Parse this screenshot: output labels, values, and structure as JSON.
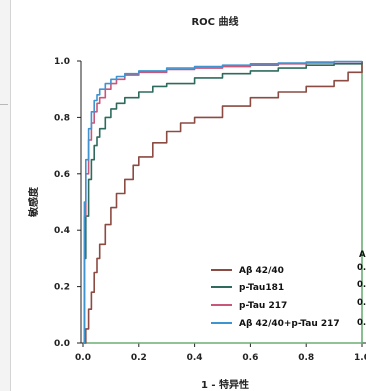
{
  "chart_data": {
    "type": "line",
    "title": "ROC 曲线",
    "xlabel": "1 - 特异性",
    "ylabel": "敏感度",
    "xlim": [
      0,
      1
    ],
    "ylim": [
      0,
      1
    ],
    "x_ticks": [
      "0.0",
      "0.2",
      "0.4",
      "0.6",
      "0.8",
      "1.0"
    ],
    "y_ticks": [
      "0.0",
      "0.2",
      "0.4",
      "0.6",
      "0.8",
      "1.0"
    ],
    "grid": false,
    "legend_position": "bottom-right",
    "auc_header": "A",
    "auc_values": [
      "0.",
      "0.",
      "0.",
      "0."
    ],
    "series": [
      {
        "name": "Aβ 42/40",
        "color": "#8B4A42",
        "x": [
          0,
          0.01,
          0.02,
          0.03,
          0.04,
          0.05,
          0.06,
          0.08,
          0.1,
          0.12,
          0.15,
          0.18,
          0.2,
          0.25,
          0.3,
          0.35,
          0.4,
          0.5,
          0.6,
          0.7,
          0.8,
          0.9,
          0.95,
          1.0
        ],
        "y": [
          0,
          0.05,
          0.12,
          0.18,
          0.25,
          0.3,
          0.35,
          0.42,
          0.48,
          0.53,
          0.58,
          0.63,
          0.66,
          0.71,
          0.75,
          0.78,
          0.8,
          0.84,
          0.87,
          0.89,
          0.91,
          0.93,
          0.96,
          1.0
        ]
      },
      {
        "name": "p-Tau181",
        "color": "#2E6B5E",
        "x": [
          0,
          0.005,
          0.01,
          0.02,
          0.03,
          0.04,
          0.05,
          0.06,
          0.08,
          0.1,
          0.12,
          0.15,
          0.2,
          0.25,
          0.3,
          0.4,
          0.5,
          0.6,
          0.7,
          0.8,
          0.9,
          1.0
        ],
        "y": [
          0,
          0.3,
          0.45,
          0.58,
          0.65,
          0.7,
          0.73,
          0.76,
          0.8,
          0.83,
          0.85,
          0.87,
          0.89,
          0.91,
          0.92,
          0.94,
          0.955,
          0.965,
          0.975,
          0.985,
          0.99,
          1.0
        ]
      },
      {
        "name": "p-Tau 217",
        "color": "#C9577A",
        "x": [
          0,
          0.005,
          0.01,
          0.02,
          0.03,
          0.04,
          0.05,
          0.06,
          0.08,
          0.1,
          0.12,
          0.15,
          0.2,
          0.3,
          0.4,
          0.5,
          0.6,
          0.7,
          0.8,
          0.9,
          1.0
        ],
        "y": [
          0,
          0.45,
          0.6,
          0.72,
          0.78,
          0.82,
          0.85,
          0.87,
          0.9,
          0.92,
          0.935,
          0.95,
          0.96,
          0.97,
          0.975,
          0.98,
          0.985,
          0.99,
          0.993,
          0.997,
          1.0
        ]
      },
      {
        "name": "Aβ 42/40+p-Tau 217",
        "color": "#3E94D1",
        "x": [
          0,
          0.005,
          0.01,
          0.02,
          0.03,
          0.04,
          0.05,
          0.06,
          0.08,
          0.1,
          0.12,
          0.15,
          0.2,
          0.3,
          0.4,
          0.5,
          0.6,
          0.7,
          0.8,
          0.9,
          1.0
        ],
        "y": [
          0,
          0.5,
          0.65,
          0.76,
          0.82,
          0.86,
          0.88,
          0.9,
          0.92,
          0.935,
          0.945,
          0.955,
          0.965,
          0.975,
          0.98,
          0.985,
          0.99,
          0.993,
          0.996,
          0.998,
          1.0
        ]
      },
      {
        "color": "#6AAE74",
        "x": [
          0,
          1
        ],
        "y": [
          0,
          1
        ]
      }
    ]
  }
}
